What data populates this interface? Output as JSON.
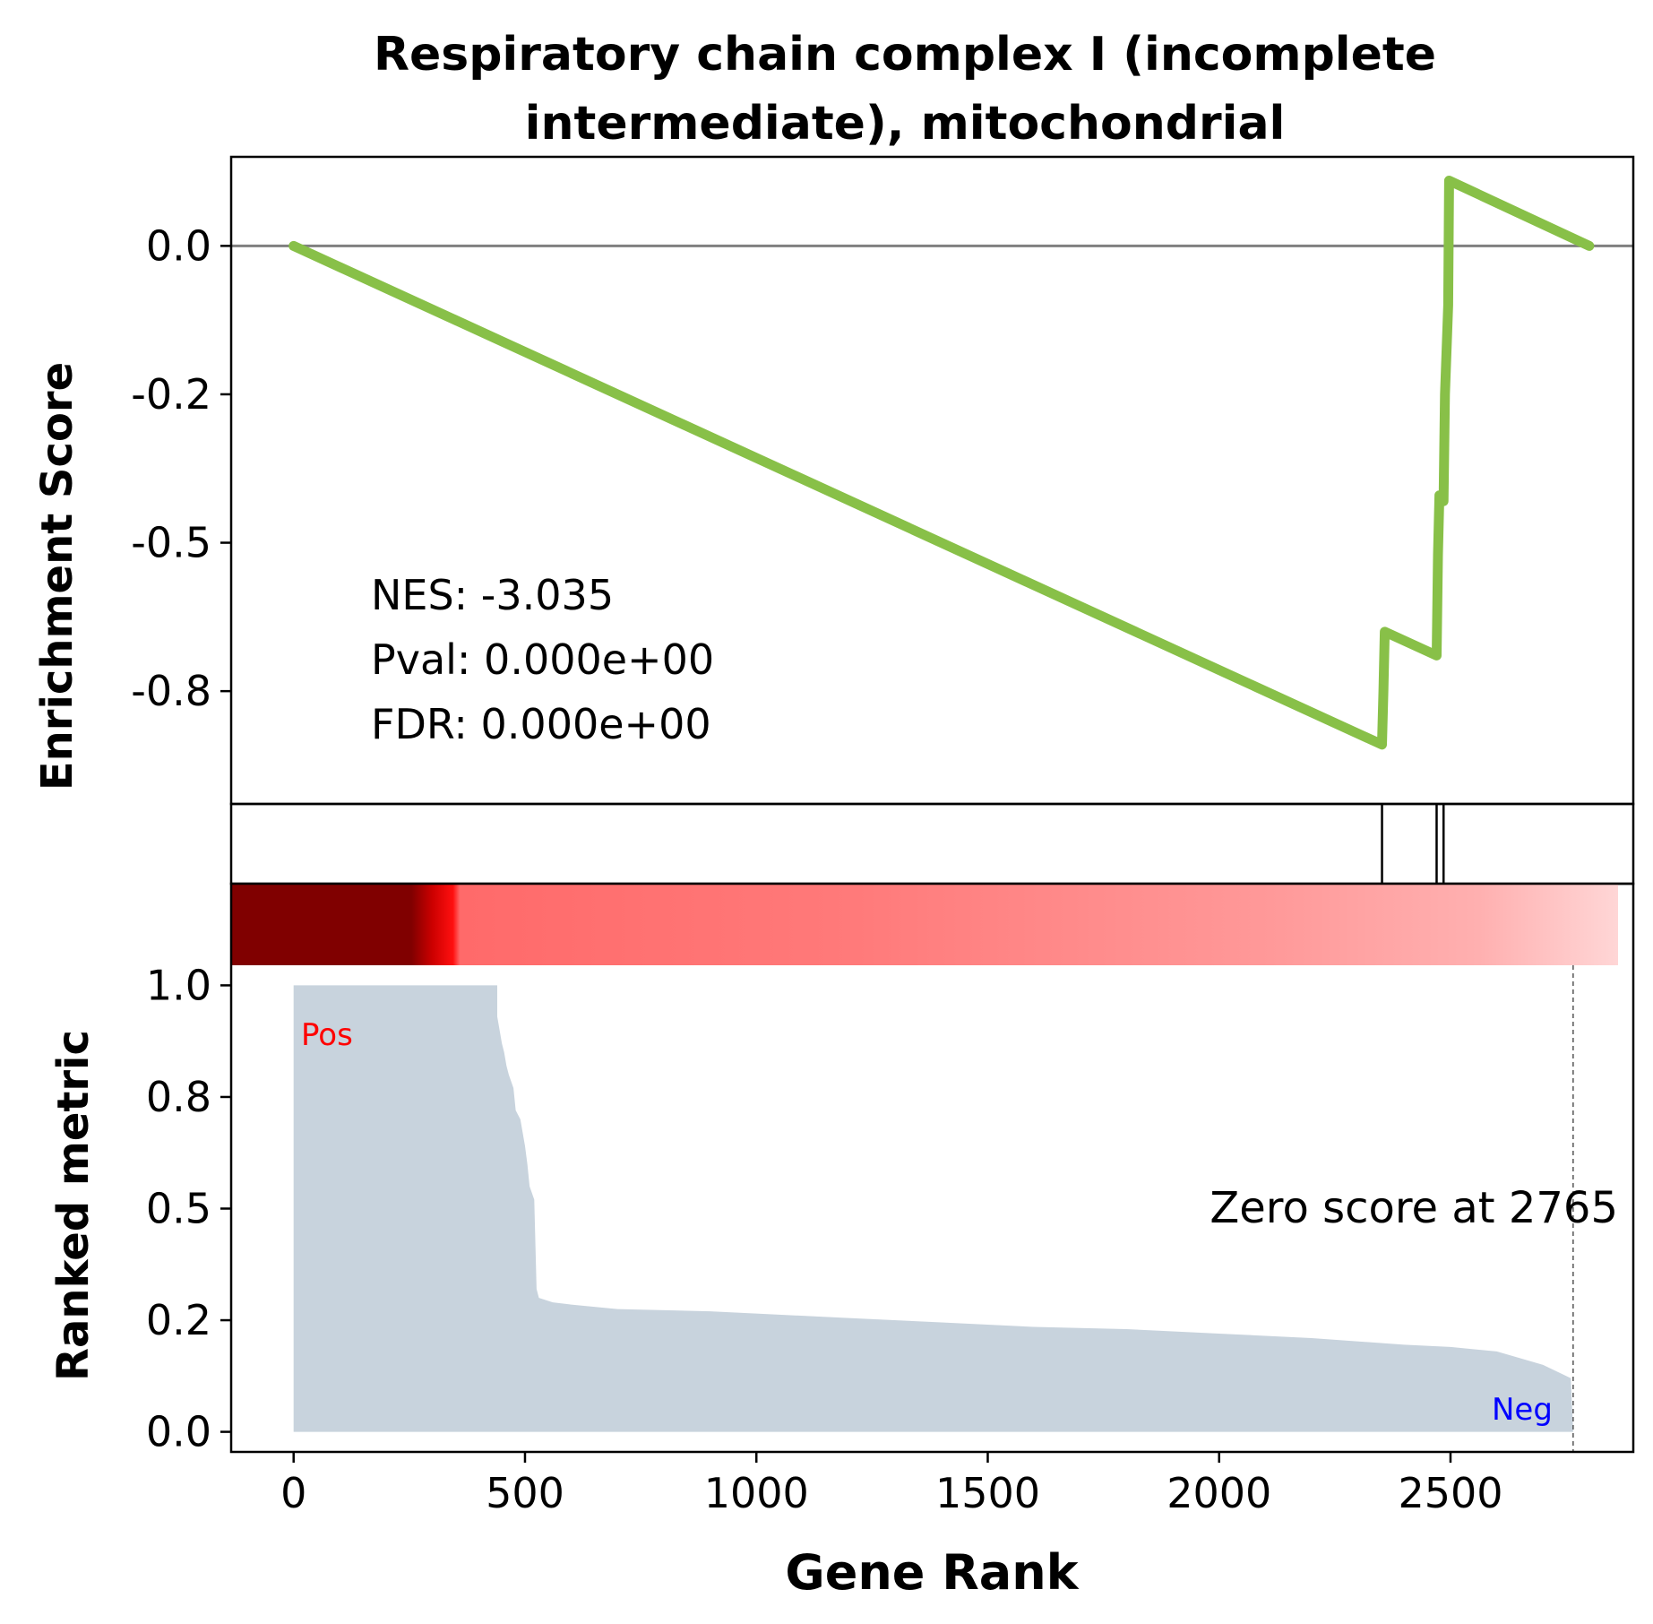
{
  "chart_data": {
    "type": "line",
    "title": "Respiratory chain complex I (incomplete intermediate), mitochondrial",
    "title_lines": [
      "Respiratory chain complex I (incomplete",
      "intermediate), mitochondrial"
    ],
    "xlabel": "Gene Rank",
    "xlim": [
      -135,
      2895
    ],
    "xticks": [
      0,
      500,
      1000,
      1500,
      2000,
      2500
    ],
    "xtick_labels": [
      "0",
      "500",
      "1000",
      "1500",
      "2000",
      "2500"
    ],
    "enrichment": {
      "ylabel": "Enrichment Score",
      "ylim": [
        -0.94,
        0.15
      ],
      "yticks": [
        0.0,
        -0.25,
        -0.5,
        -0.75
      ],
      "ytick_labels": [
        "0.0",
        "-0.2",
        "-0.5",
        "-0.8"
      ],
      "zero_line": true,
      "color": "#88c048",
      "x": [
        0,
        2352,
        2355,
        2358,
        2470,
        2473,
        2476,
        2485,
        2488,
        2495,
        2497,
        2800
      ],
      "y": [
        0.0,
        -0.84,
        -0.75,
        -0.65,
        -0.69,
        -0.52,
        -0.42,
        -0.43,
        -0.25,
        -0.1,
        0.11,
        0.0
      ],
      "annotations": [
        "NES: -3.035",
        "Pval: 0.000e+00",
        "FDR: 0.000e+00"
      ]
    },
    "hits": [
      2352,
      2470,
      2485
    ],
    "ranked_metric": {
      "ylabel": "Ranked metric",
      "ylim": [
        -0.045,
        1.045
      ],
      "yticks": [
        0.0,
        0.25,
        0.5,
        0.75,
        1.0
      ],
      "ytick_labels": [
        "0.0",
        "0.2",
        "0.5",
        "0.8",
        "1.0"
      ],
      "fill_color": "#c8d3dd",
      "x": [
        0,
        440,
        440,
        445,
        450,
        455,
        460,
        465,
        475,
        480,
        490,
        495,
        500,
        505,
        510,
        520,
        525,
        530,
        560,
        600,
        700,
        900,
        1000,
        1200,
        1400,
        1600,
        1800,
        2000,
        2200,
        2400,
        2500,
        2600,
        2650,
        2700,
        2740,
        2760,
        2765,
        2800
      ],
      "y": [
        1.0,
        1.0,
        0.93,
        0.9,
        0.87,
        0.85,
        0.82,
        0.8,
        0.77,
        0.72,
        0.7,
        0.67,
        0.64,
        0.6,
        0.55,
        0.52,
        0.32,
        0.3,
        0.29,
        0.285,
        0.275,
        0.27,
        0.265,
        0.255,
        0.245,
        0.235,
        0.23,
        0.22,
        0.21,
        0.195,
        0.19,
        0.18,
        0.165,
        0.15,
        0.13,
        0.12,
        0.0,
        0.0
      ],
      "zero_score_at": 2765,
      "zero_score_label": "Zero score at 2765",
      "pos_label": "Pos",
      "neg_label": "Neg"
    },
    "heatmap": {
      "colormap": "reds",
      "x_range": [
        0,
        2895
      ]
    },
    "colors": {
      "line": "#88c048",
      "fill": "#c8d3dd",
      "pos": "#ff0000",
      "neg": "#0000ff",
      "zero_line": "#808080"
    }
  }
}
